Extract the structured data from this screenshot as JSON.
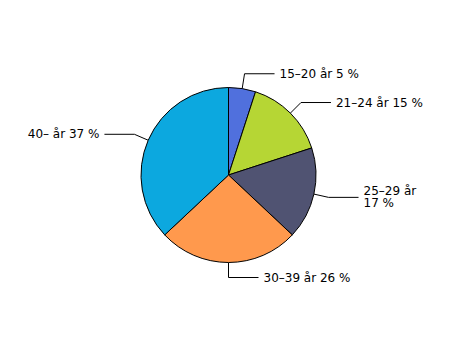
{
  "chart_data": {
    "type": "pie",
    "values": [
      5,
      15,
      17,
      26,
      37
    ],
    "value_labels": [
      "15–20 år 5 %",
      "21–24 år 15 %",
      "25–29 år\n17 %",
      "30–39 år 26 %",
      "40– år 37 %"
    ],
    "legend": false
  }
}
